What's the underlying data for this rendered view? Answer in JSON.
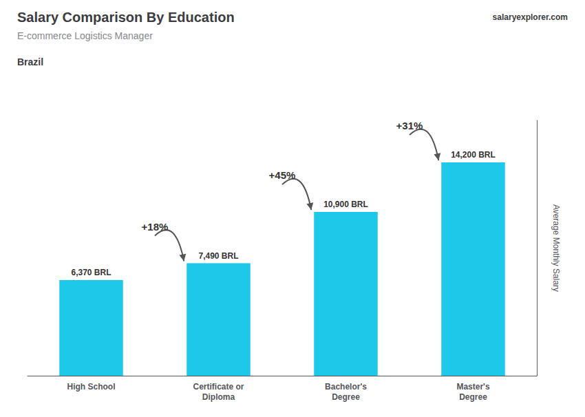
{
  "chart_data": {
    "type": "bar",
    "title": "Salary Comparison By Education",
    "subtitle": "E-commerce Logistics Manager",
    "annotations": [
      "Brazil",
      "salaryexplorer.com"
    ],
    "change_labels": [
      "+18%",
      "+45%",
      "+31%"
    ],
    "categories": [
      "High School",
      "Certificate or\nDiploma",
      "Bachelor's\nDegree",
      "Master's\nDegree"
    ],
    "values": [
      6370,
      7490,
      10900,
      14200
    ],
    "value_labels": [
      "6,370 BRL",
      "7,490 BRL",
      "10,900 BRL",
      "14,200 BRL"
    ],
    "data_labels": true,
    "color": "#1EC8E8",
    "ylabel": "Average Monthly Salary",
    "ylim": [
      0,
      17000
    ],
    "grid": false,
    "tick_labels": "x"
  }
}
